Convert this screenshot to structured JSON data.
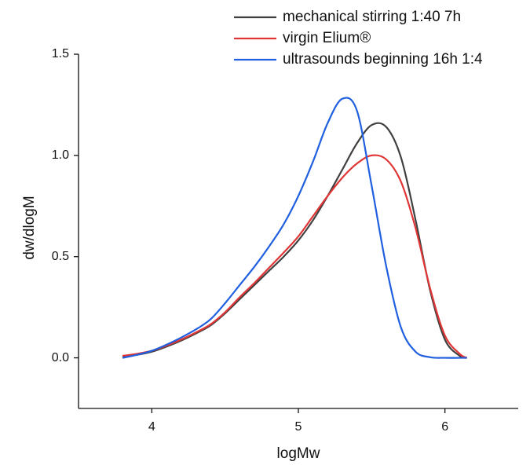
{
  "chart_data": {
    "type": "line",
    "x_label": "logMw",
    "y_label": "dw/dlogM",
    "x": [
      3.8,
      3.9,
      4.0,
      4.1,
      4.2,
      4.3,
      4.4,
      4.5,
      4.6,
      4.7,
      4.8,
      4.9,
      5.0,
      5.1,
      5.2,
      5.3,
      5.4,
      5.5,
      5.6,
      5.7,
      5.8,
      5.9,
      6.0,
      6.1,
      6.15
    ],
    "series": [
      {
        "name": "mechanical stirring 1:40 7h",
        "color": "#404040",
        "values": [
          0.005,
          0.015,
          0.03,
          0.055,
          0.085,
          0.12,
          0.16,
          0.22,
          0.29,
          0.36,
          0.43,
          0.5,
          0.58,
          0.68,
          0.8,
          0.93,
          1.06,
          1.15,
          1.14,
          0.99,
          0.68,
          0.33,
          0.09,
          0.01,
          0.0
        ]
      },
      {
        "name": "virgin Elium®",
        "color": "#e03535",
        "values": [
          0.01,
          0.02,
          0.035,
          0.06,
          0.09,
          0.125,
          0.165,
          0.225,
          0.3,
          0.37,
          0.445,
          0.52,
          0.6,
          0.7,
          0.8,
          0.89,
          0.96,
          1.0,
          0.98,
          0.87,
          0.64,
          0.34,
          0.11,
          0.02,
          0.0
        ]
      },
      {
        "name": "ultrasounds beginning 16h 1:4",
        "color": "#2060e0",
        "values": [
          0.0,
          0.015,
          0.035,
          0.065,
          0.1,
          0.14,
          0.19,
          0.27,
          0.36,
          0.45,
          0.55,
          0.66,
          0.8,
          0.97,
          1.16,
          1.28,
          1.22,
          0.85,
          0.45,
          0.15,
          0.03,
          0.003,
          0.0,
          0.0,
          0.0
        ]
      }
    ],
    "xlim": [
      3.5,
      6.5
    ],
    "xticks": [
      4,
      5,
      6
    ],
    "ylim": [
      -0.25,
      1.5
    ],
    "yticks": [
      {
        "value": 0.0,
        "label": "0.0"
      },
      {
        "value": 0.5,
        "label": "0.5"
      },
      {
        "value": 1.0,
        "label": "1.0"
      },
      {
        "value": 1.5,
        "label": "1.5"
      }
    ],
    "legend": "upper right",
    "grid": false
  }
}
